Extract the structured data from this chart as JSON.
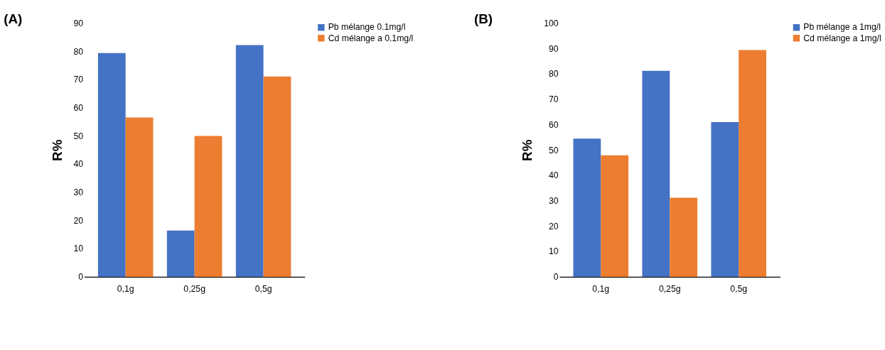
{
  "chart_data": [
    {
      "type": "bar",
      "title": "(A)",
      "ylabel": "R%",
      "categories": [
        "0,1g",
        "0,25g",
        "0,5g"
      ],
      "ylim": [
        0,
        90
      ],
      "yticks": [
        0,
        10,
        20,
        30,
        40,
        50,
        60,
        70,
        80,
        90
      ],
      "grid": false,
      "legend": "right",
      "series": [
        {
          "name": "Pb mélange 0.1mg/l",
          "color": "#4472c4",
          "values": [
            79.4,
            16.4,
            82.2
          ]
        },
        {
          "name": "Cd mélange a 0.1mg/l",
          "color": "#ed7d31",
          "values": [
            56.5,
            50,
            71.1
          ]
        }
      ]
    },
    {
      "type": "bar",
      "title": "(B)",
      "ylabel": "R%",
      "categories": [
        "0,1g",
        "0,25g",
        "0,5g"
      ],
      "ylim": [
        0,
        100
      ],
      "yticks": [
        0,
        10,
        20,
        30,
        40,
        50,
        60,
        70,
        80,
        90,
        100
      ],
      "grid": false,
      "legend": "right",
      "series": [
        {
          "name": "Pb mélange a 1mg/l",
          "color": "#4472c4",
          "values": [
            54.5,
            81.2,
            61
          ]
        },
        {
          "name": "Cd mélange a 1mg/l",
          "color": "#ed7d31",
          "values": [
            47.9,
            31.2,
            89.4
          ]
        }
      ]
    }
  ]
}
